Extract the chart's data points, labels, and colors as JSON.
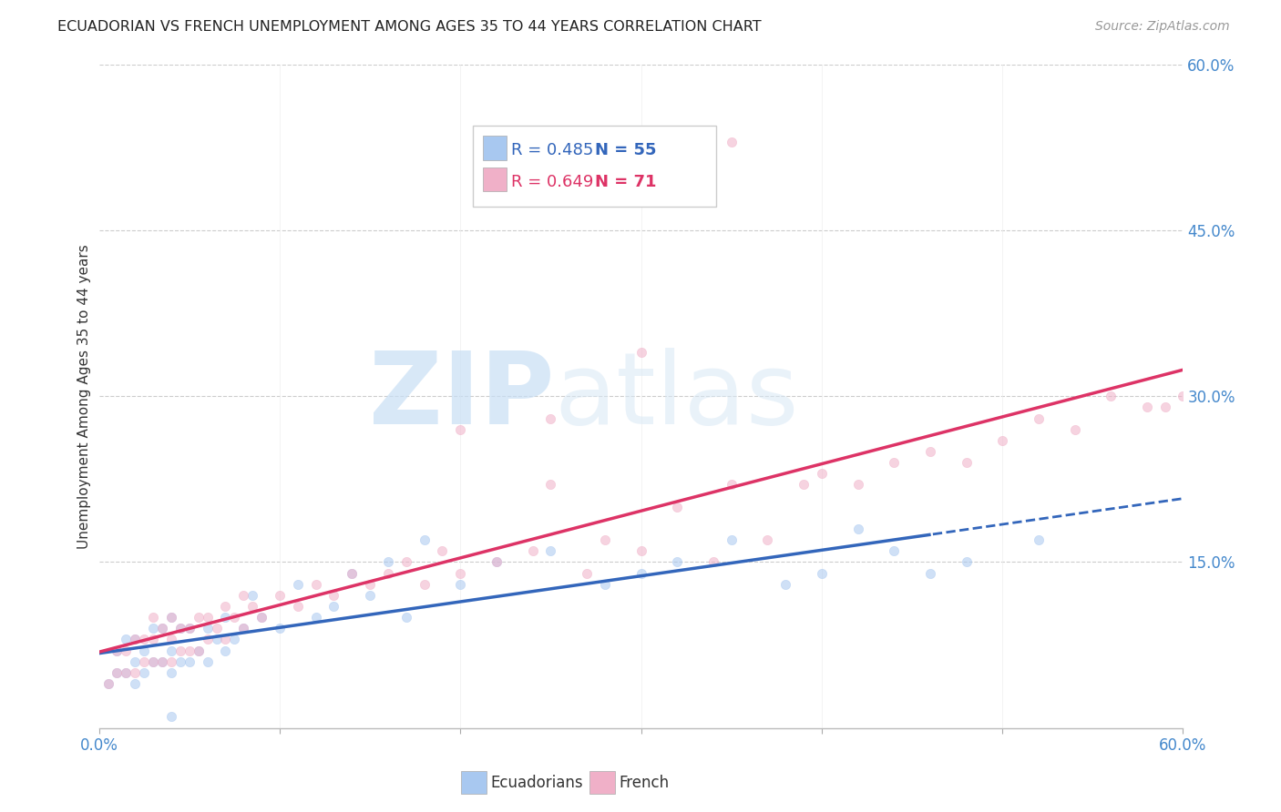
{
  "title": "ECUADORIAN VS FRENCH UNEMPLOYMENT AMONG AGES 35 TO 44 YEARS CORRELATION CHART",
  "source": "Source: ZipAtlas.com",
  "ylabel": "Unemployment Among Ages 35 to 44 years",
  "xlim": [
    0.0,
    0.6
  ],
  "ylim": [
    0.0,
    0.6
  ],
  "xtick_positions": [
    0.0,
    0.1,
    0.2,
    0.3,
    0.4,
    0.5,
    0.6
  ],
  "yticks_right": [
    0.15,
    0.3,
    0.45,
    0.6
  ],
  "grid_color": "#cccccc",
  "bg_color": "#ffffff",
  "watermark_zip": "ZIP",
  "watermark_atlas": "atlas",
  "watermark_color": "#ccddf0",
  "legend_r1": "R = 0.485",
  "legend_n1": "N = 55",
  "legend_r2": "R = 0.649",
  "legend_n2": "N = 71",
  "blue_color": "#a8c8f0",
  "pink_color": "#f0b0c8",
  "blue_line_color": "#3366bb",
  "pink_line_color": "#dd3366",
  "scatter_alpha": 0.55,
  "scatter_size": 55,
  "ecu_x": [
    0.005,
    0.01,
    0.01,
    0.015,
    0.015,
    0.02,
    0.02,
    0.02,
    0.025,
    0.025,
    0.03,
    0.03,
    0.035,
    0.035,
    0.04,
    0.04,
    0.04,
    0.045,
    0.045,
    0.05,
    0.05,
    0.055,
    0.06,
    0.06,
    0.065,
    0.07,
    0.07,
    0.075,
    0.08,
    0.085,
    0.09,
    0.1,
    0.11,
    0.12,
    0.13,
    0.14,
    0.15,
    0.16,
    0.17,
    0.18,
    0.2,
    0.22,
    0.25,
    0.28,
    0.3,
    0.32,
    0.35,
    0.38,
    0.4,
    0.42,
    0.44,
    0.46,
    0.48,
    0.52,
    0.04
  ],
  "ecu_y": [
    0.04,
    0.05,
    0.07,
    0.05,
    0.08,
    0.04,
    0.06,
    0.08,
    0.05,
    0.07,
    0.06,
    0.09,
    0.06,
    0.09,
    0.05,
    0.07,
    0.1,
    0.06,
    0.09,
    0.06,
    0.09,
    0.07,
    0.06,
    0.09,
    0.08,
    0.07,
    0.1,
    0.08,
    0.09,
    0.12,
    0.1,
    0.09,
    0.13,
    0.1,
    0.11,
    0.14,
    0.12,
    0.15,
    0.1,
    0.17,
    0.13,
    0.15,
    0.16,
    0.13,
    0.14,
    0.15,
    0.17,
    0.13,
    0.14,
    0.18,
    0.16,
    0.14,
    0.15,
    0.17,
    0.01
  ],
  "fr_x": [
    0.005,
    0.01,
    0.01,
    0.015,
    0.015,
    0.02,
    0.02,
    0.025,
    0.025,
    0.03,
    0.03,
    0.03,
    0.035,
    0.035,
    0.04,
    0.04,
    0.04,
    0.045,
    0.045,
    0.05,
    0.05,
    0.055,
    0.055,
    0.06,
    0.06,
    0.065,
    0.07,
    0.07,
    0.075,
    0.08,
    0.08,
    0.085,
    0.09,
    0.1,
    0.11,
    0.12,
    0.13,
    0.14,
    0.15,
    0.16,
    0.17,
    0.18,
    0.19,
    0.2,
    0.22,
    0.24,
    0.25,
    0.27,
    0.28,
    0.3,
    0.32,
    0.34,
    0.35,
    0.37,
    0.39,
    0.4,
    0.42,
    0.44,
    0.46,
    0.48,
    0.5,
    0.52,
    0.54,
    0.56,
    0.58,
    0.59,
    0.6,
    0.3,
    0.35,
    0.25,
    0.2
  ],
  "fr_y": [
    0.04,
    0.05,
    0.07,
    0.05,
    0.07,
    0.05,
    0.08,
    0.06,
    0.08,
    0.06,
    0.08,
    0.1,
    0.06,
    0.09,
    0.06,
    0.08,
    0.1,
    0.07,
    0.09,
    0.07,
    0.09,
    0.07,
    0.1,
    0.08,
    0.1,
    0.09,
    0.08,
    0.11,
    0.1,
    0.09,
    0.12,
    0.11,
    0.1,
    0.12,
    0.11,
    0.13,
    0.12,
    0.14,
    0.13,
    0.14,
    0.15,
    0.13,
    0.16,
    0.14,
    0.15,
    0.16,
    0.22,
    0.14,
    0.17,
    0.16,
    0.2,
    0.15,
    0.22,
    0.17,
    0.22,
    0.23,
    0.22,
    0.24,
    0.25,
    0.24,
    0.26,
    0.28,
    0.27,
    0.3,
    0.29,
    0.29,
    0.3,
    0.34,
    0.53,
    0.28,
    0.27
  ],
  "ecu_solid_max": 0.46,
  "fr_intercept": 0.01,
  "fr_slope": 0.48,
  "ecu_intercept": 0.03,
  "ecu_slope": 0.22
}
